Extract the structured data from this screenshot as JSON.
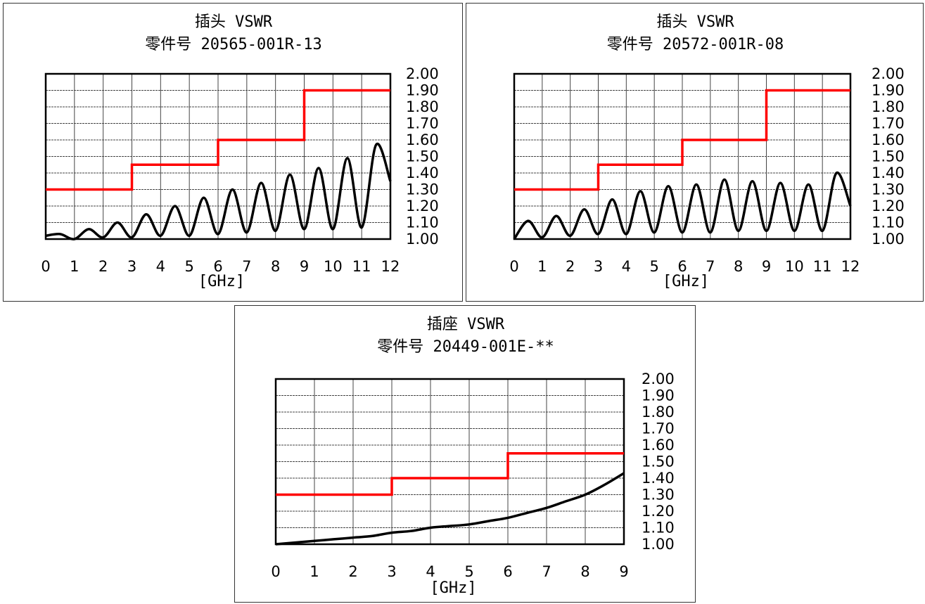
{
  "charts": [
    {
      "title": "插头 VSWR",
      "subtitle": "零件号 20565-001R-13",
      "unit_label": "[GHz]",
      "x_ticks": [
        "0",
        "1",
        "2",
        "3",
        "4",
        "5",
        "6",
        "7",
        "8",
        "9",
        "10",
        "11",
        "12"
      ],
      "y_ticks": [
        "2.00",
        "1.90",
        "1.80",
        "1.70",
        "1.60",
        "1.50",
        "1.40",
        "1.30",
        "1.20",
        "1.10",
        "1.00"
      ]
    },
    {
      "title": "插头 VSWR",
      "subtitle": "零件号 20572-001R-08",
      "unit_label": "[GHz]",
      "x_ticks": [
        "0",
        "1",
        "2",
        "3",
        "4",
        "5",
        "6",
        "7",
        "8",
        "9",
        "10",
        "11",
        "12"
      ],
      "y_ticks": [
        "2.00",
        "1.90",
        "1.80",
        "1.70",
        "1.60",
        "1.50",
        "1.40",
        "1.30",
        "1.20",
        "1.10",
        "1.00"
      ]
    },
    {
      "title": "插座 VSWR",
      "subtitle": "零件号 20449-001E-**",
      "unit_label": "[GHz]",
      "x_ticks": [
        "0",
        "1",
        "2",
        "3",
        "4",
        "5",
        "6",
        "7",
        "8",
        "9"
      ],
      "y_ticks": [
        "2.00",
        "1.90",
        "1.80",
        "1.70",
        "1.60",
        "1.50",
        "1.40",
        "1.30",
        "1.20",
        "1.10",
        "1.00"
      ]
    }
  ],
  "chart_data": [
    {
      "type": "line",
      "title": "插头 VSWR",
      "subtitle": "零件号 20565-001R-13",
      "xlabel": "[GHz]",
      "ylabel": "",
      "xlim": [
        0,
        12
      ],
      "ylim": [
        1.0,
        2.0
      ],
      "grid": true,
      "y_axis_side": "right",
      "series": [
        {
          "kind": "limit",
          "color": "#ff0000",
          "x": [
            0,
            3,
            3,
            6,
            6,
            9,
            9,
            12
          ],
          "y": [
            1.3,
            1.3,
            1.45,
            1.45,
            1.6,
            1.6,
            1.9,
            1.9
          ]
        },
        {
          "kind": "measured",
          "color": "#000000",
          "x": [
            0,
            0.5,
            1.0,
            1.5,
            2.0,
            2.5,
            3.0,
            3.5,
            4.0,
            4.5,
            5.0,
            5.5,
            6.0,
            6.5,
            7.0,
            7.5,
            8.0,
            8.5,
            9.0,
            9.5,
            10.0,
            10.5,
            11.0,
            11.5,
            12.0
          ],
          "y": [
            1.02,
            1.03,
            1.0,
            1.06,
            1.01,
            1.1,
            1.01,
            1.15,
            1.02,
            1.2,
            1.02,
            1.25,
            1.03,
            1.3,
            1.04,
            1.34,
            1.05,
            1.39,
            1.06,
            1.43,
            1.06,
            1.49,
            1.07,
            1.57,
            1.35
          ]
        }
      ]
    },
    {
      "type": "line",
      "title": "插头 VSWR",
      "subtitle": "零件号 20572-001R-08",
      "xlabel": "[GHz]",
      "ylabel": "",
      "xlim": [
        0,
        12
      ],
      "ylim": [
        1.0,
        2.0
      ],
      "grid": true,
      "y_axis_side": "right",
      "series": [
        {
          "kind": "limit",
          "color": "#ff0000",
          "x": [
            0,
            3,
            3,
            6,
            6,
            9,
            9,
            12
          ],
          "y": [
            1.3,
            1.3,
            1.45,
            1.45,
            1.6,
            1.6,
            1.9,
            1.9
          ]
        },
        {
          "kind": "measured",
          "color": "#000000",
          "x": [
            0,
            0.5,
            1.0,
            1.5,
            2.0,
            2.5,
            3.0,
            3.5,
            4.0,
            4.5,
            5.0,
            5.5,
            6.0,
            6.5,
            7.0,
            7.5,
            8.0,
            8.5,
            9.0,
            9.5,
            10.0,
            10.5,
            11.0,
            11.5,
            12.0
          ],
          "y": [
            1.0,
            1.11,
            1.01,
            1.14,
            1.02,
            1.18,
            1.03,
            1.24,
            1.03,
            1.29,
            1.04,
            1.32,
            1.04,
            1.33,
            1.04,
            1.36,
            1.05,
            1.35,
            1.05,
            1.34,
            1.05,
            1.33,
            1.05,
            1.4,
            1.2
          ]
        }
      ]
    },
    {
      "type": "line",
      "title": "插座 VSWR",
      "subtitle": "零件号 20449-001E-**",
      "xlabel": "[GHz]",
      "ylabel": "",
      "xlim": [
        0,
        9
      ],
      "ylim": [
        1.0,
        2.0
      ],
      "grid": true,
      "y_axis_side": "right",
      "series": [
        {
          "kind": "limit",
          "color": "#ff0000",
          "x": [
            0,
            3,
            3,
            6,
            6,
            9
          ],
          "y": [
            1.3,
            1.3,
            1.4,
            1.4,
            1.55,
            1.55
          ]
        },
        {
          "kind": "measured",
          "color": "#000000",
          "x": [
            0,
            0.5,
            1.0,
            1.5,
            2.0,
            2.5,
            3.0,
            3.5,
            4.0,
            4.5,
            5.0,
            5.5,
            6.0,
            6.5,
            7.0,
            7.5,
            8.0,
            8.5,
            9.0
          ],
          "y": [
            1.0,
            1.01,
            1.02,
            1.03,
            1.04,
            1.05,
            1.07,
            1.08,
            1.1,
            1.11,
            1.12,
            1.14,
            1.16,
            1.19,
            1.22,
            1.26,
            1.3,
            1.36,
            1.43
          ]
        }
      ]
    }
  ]
}
